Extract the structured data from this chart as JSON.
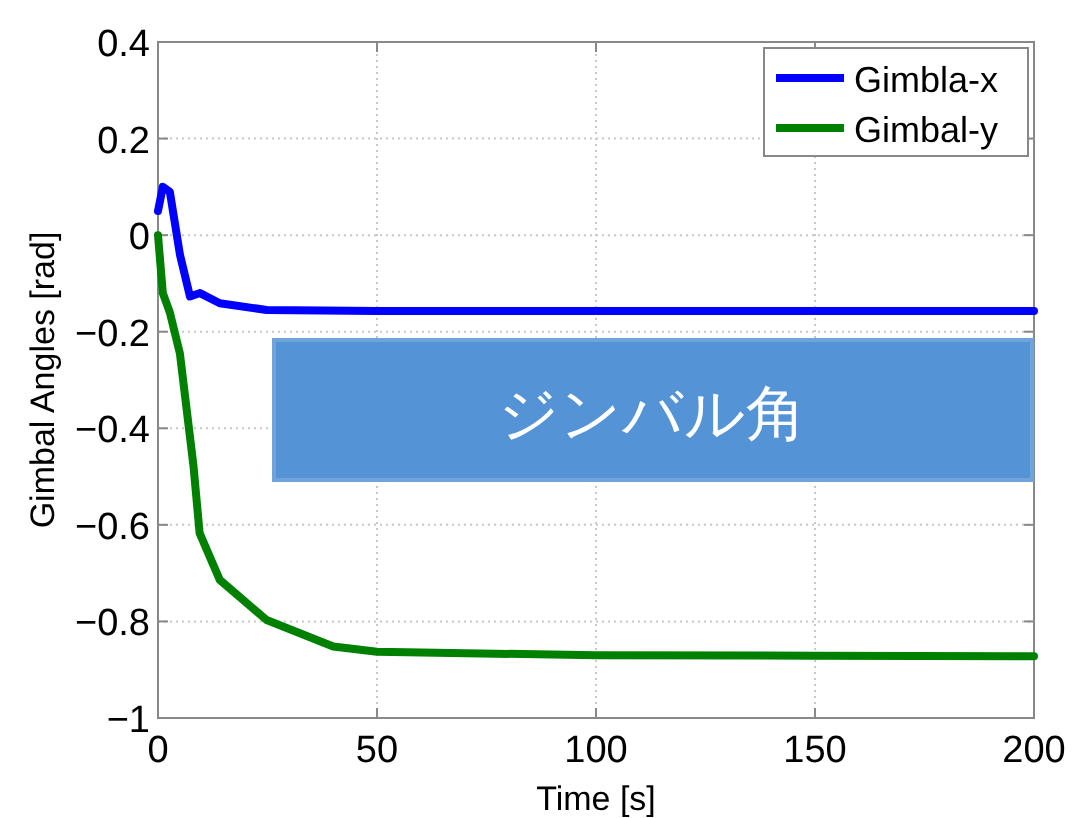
{
  "chart_data": {
    "type": "line",
    "xlabel": "Time [s]",
    "ylabel": "Gimbal Angles [rad]",
    "annotations": [
      "ジンバル角"
    ],
    "xlim": [
      0,
      200
    ],
    "ylim": [
      -1,
      0.4
    ],
    "xticks": [
      0,
      50,
      100,
      150,
      200
    ],
    "yticks": [
      0.4,
      0.2,
      0,
      -0.2,
      -0.4,
      -0.6,
      -0.8,
      -1
    ],
    "grid": true,
    "legend": "top right",
    "line_style": "solid",
    "series": [
      {
        "name": "Gimbla-x",
        "color": "#0000ff",
        "x": [
          0,
          1.1,
          2.7,
          5,
          7.3,
          9.6,
          14.1,
          24.8,
          50,
          100,
          150,
          200
        ],
        "values": [
          0.05,
          0.1,
          0.09,
          -0.04,
          -0.127,
          -0.12,
          -0.141,
          -0.155,
          -0.157,
          -0.157,
          -0.157,
          -0.157
        ]
      },
      {
        "name": "Gimbal-y",
        "color": "#008000",
        "x": [
          0,
          1.1,
          2.7,
          5,
          8.1,
          9.5,
          14.1,
          24.8,
          40,
          50,
          100,
          150,
          200
        ],
        "values": [
          0,
          -0.12,
          -0.16,
          -0.245,
          -0.478,
          -0.617,
          -0.714,
          -0.797,
          -0.852,
          -0.863,
          -0.87,
          -0.871,
          -0.872
        ]
      }
    ]
  }
}
